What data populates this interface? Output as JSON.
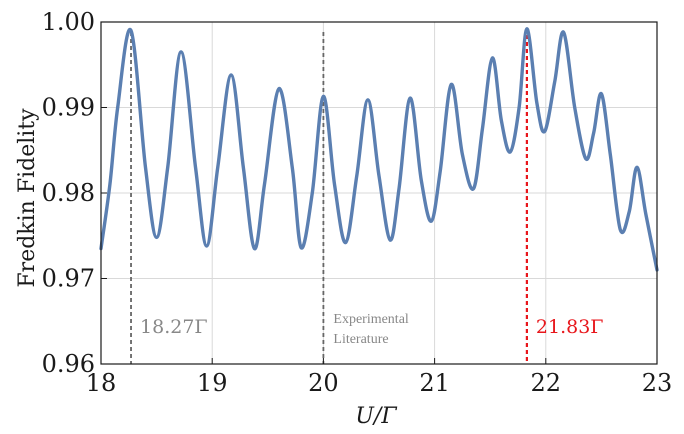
{
  "chart_data": {
    "type": "line",
    "xlabel": "U/Γ",
    "ylabel": "Fredkin Fidelity",
    "xlim": [
      18,
      23
    ],
    "ylim": [
      0.96,
      1.0
    ],
    "grid": true,
    "x_ticks": [
      "18",
      "19",
      "20",
      "21",
      "22",
      "23"
    ],
    "y_ticks": [
      "0.96",
      "0.97",
      "0.98",
      "0.99",
      "1.00"
    ],
    "colors": {
      "line": "#5b7fb1",
      "marker_gray": "#666666",
      "marker_red": "#e8161b",
      "grid": "#d9d9d9"
    },
    "series": [
      {
        "x": [
          18.0,
          18.08,
          18.15,
          18.27,
          18.4,
          18.5,
          18.6,
          18.72,
          18.85,
          18.95,
          19.05,
          19.17,
          19.28,
          19.38,
          19.47,
          19.6,
          19.72,
          19.8,
          19.9,
          20.0,
          20.1,
          20.2,
          20.3,
          20.4,
          20.5,
          20.6,
          20.68,
          20.78,
          20.88,
          20.97,
          21.05,
          21.15,
          21.25,
          21.35,
          21.43,
          21.52,
          21.6,
          21.68,
          21.76,
          21.83,
          21.92,
          21.99,
          22.08,
          22.16,
          22.26,
          22.36,
          22.43,
          22.5,
          22.58,
          22.67,
          22.75,
          22.82,
          22.9,
          23.0
        ],
        "y": [
          0.9735,
          0.981,
          0.99,
          0.999,
          0.983,
          0.9748,
          0.983,
          0.9965,
          0.983,
          0.9738,
          0.983,
          0.9938,
          0.983,
          0.9735,
          0.981,
          0.9922,
          0.983,
          0.9736,
          0.98,
          0.9913,
          0.981,
          0.9742,
          0.982,
          0.9909,
          0.982,
          0.9745,
          0.9805,
          0.9911,
          0.9815,
          0.9767,
          0.9825,
          0.9927,
          0.9845,
          0.9805,
          0.9875,
          0.9958,
          0.9885,
          0.9848,
          0.99,
          0.9992,
          0.9905,
          0.9872,
          0.993,
          0.9988,
          0.99,
          0.984,
          0.987,
          0.9916,
          0.9845,
          0.9757,
          0.9778,
          0.983,
          0.9775,
          0.971
        ]
      }
    ],
    "annotations": [
      {
        "x": 18.27,
        "label": "18.27Γ",
        "color": "gray"
      },
      {
        "x": 20.0,
        "label_lines": [
          "Experimental",
          "Literature"
        ],
        "color": "gray"
      },
      {
        "x": 21.83,
        "label": "21.83Γ",
        "color": "red"
      }
    ]
  }
}
